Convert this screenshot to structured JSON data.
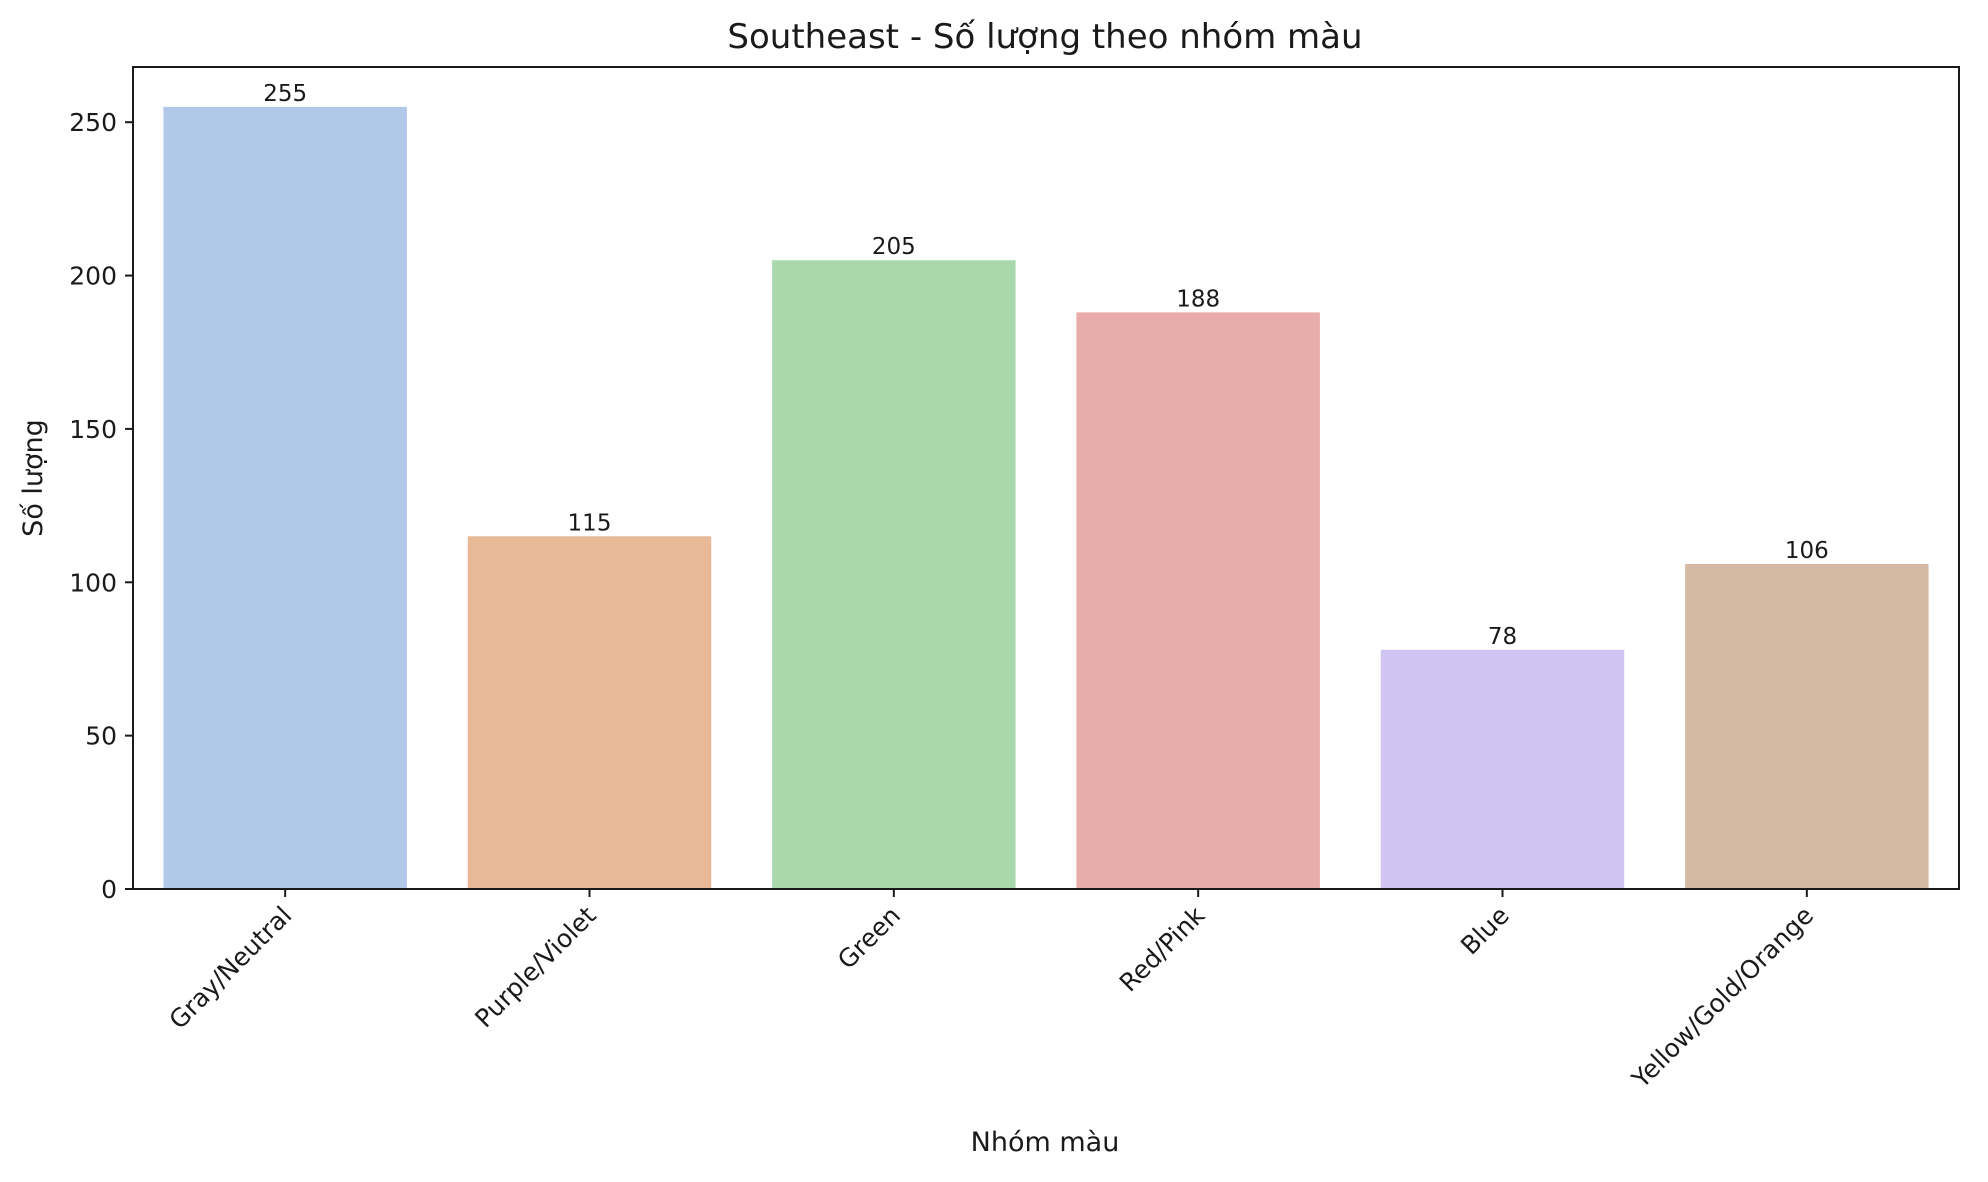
{
  "chart_data": {
    "type": "bar",
    "title": "Southeast - Số lượng theo nhóm màu",
    "xlabel": "Nhóm màu",
    "ylabel": "Số lượng",
    "categories": [
      "Gray/Neutral",
      "Purple/Violet",
      "Green",
      "Red/Pink",
      "Blue",
      "Yellow/Gold/Orange"
    ],
    "values": [
      255,
      115,
      205,
      188,
      78,
      106
    ],
    "colors": [
      "#b2c8e8",
      "#e8b997",
      "#a8d8ab",
      "#e8adaa",
      "#d0c4f2",
      "#d4baa2"
    ],
    "ylim": [
      0,
      268
    ],
    "yticks": [
      0,
      50,
      100,
      150,
      200,
      250
    ],
    "grid": false,
    "legend": "none"
  }
}
